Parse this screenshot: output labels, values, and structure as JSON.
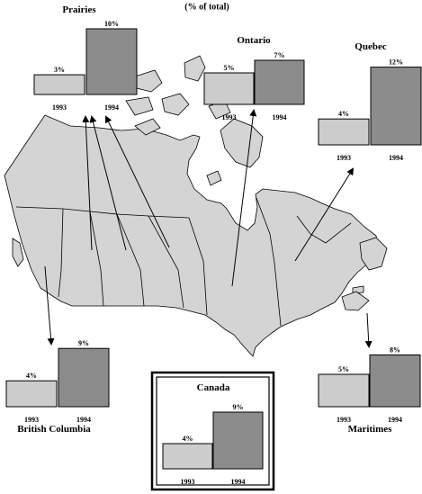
{
  "subtitle": "(% of total)",
  "chart_data": [
    {
      "type": "bar",
      "region": "Prairies",
      "categories": [
        "1993",
        "1994"
      ],
      "values": [
        3,
        10
      ],
      "value_labels": [
        "3%",
        "10%"
      ],
      "colors": [
        "#cccccc",
        "#8c8c8c"
      ]
    },
    {
      "type": "bar",
      "region": "Ontario",
      "categories": [
        "1993",
        "1994"
      ],
      "values": [
        5,
        7
      ],
      "value_labels": [
        "5%",
        "7%"
      ],
      "colors": [
        "#cccccc",
        "#8c8c8c"
      ]
    },
    {
      "type": "bar",
      "region": "Quebec",
      "categories": [
        "1993",
        "1994"
      ],
      "values": [
        4,
        12
      ],
      "value_labels": [
        "4%",
        "12%"
      ],
      "colors": [
        "#cccccc",
        "#8c8c8c"
      ]
    },
    {
      "type": "bar",
      "region": "British Columbia",
      "categories": [
        "1993",
        "1994"
      ],
      "values": [
        4,
        9
      ],
      "value_labels": [
        "4%",
        "9%"
      ],
      "colors": [
        "#cccccc",
        "#8c8c8c"
      ]
    },
    {
      "type": "bar",
      "region": "Maritimes",
      "categories": [
        "1993",
        "1994"
      ],
      "values": [
        5,
        8
      ],
      "value_labels": [
        "5%",
        "8%"
      ],
      "colors": [
        "#cccccc",
        "#8c8c8c"
      ]
    },
    {
      "type": "bar",
      "region": "Canada",
      "categories": [
        "1993",
        "1994"
      ],
      "values": [
        4,
        9
      ],
      "value_labels": [
        "4%",
        "9%"
      ],
      "colors": [
        "#cccccc",
        "#8c8c8c"
      ]
    }
  ]
}
